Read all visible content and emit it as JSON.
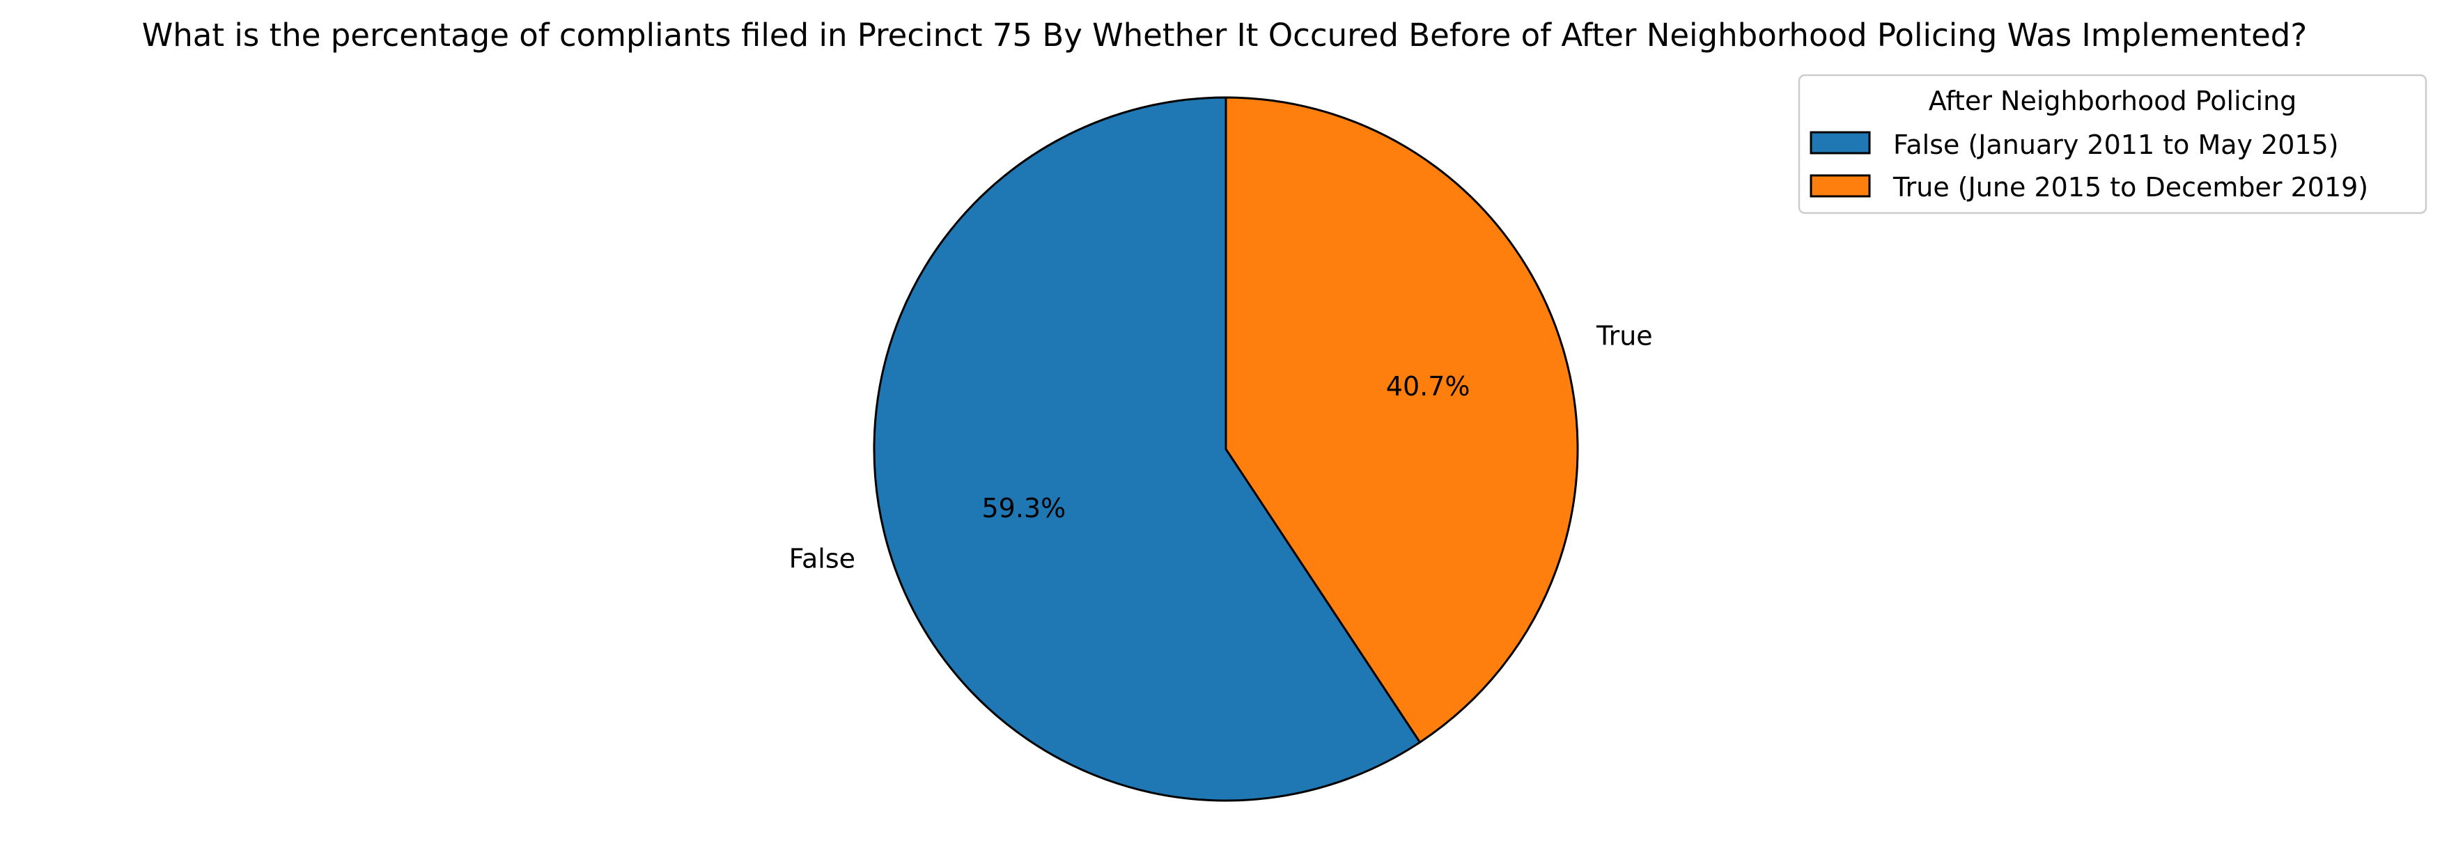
{
  "chart_data": {
    "type": "pie",
    "title": "What is the percentage of compliants filed in Precinct 75 By Whether It Occured Before of After Neighborhood Policing Was Implemented?",
    "categories": [
      "False",
      "True"
    ],
    "values": [
      59.3,
      40.7
    ],
    "value_labels": [
      "59.3%",
      "40.7%"
    ],
    "colors": [
      "#1f77b4",
      "#ff7f0e"
    ],
    "edge_color": "#000000",
    "start_angle_deg": 90,
    "direction": "counterclockwise",
    "legend": {
      "title": "After Neighborhood Policing",
      "placement": "top-right",
      "entries": [
        "False (January 2011 to May 2015)",
        "True (June 2015 to December 2019)"
      ]
    }
  }
}
